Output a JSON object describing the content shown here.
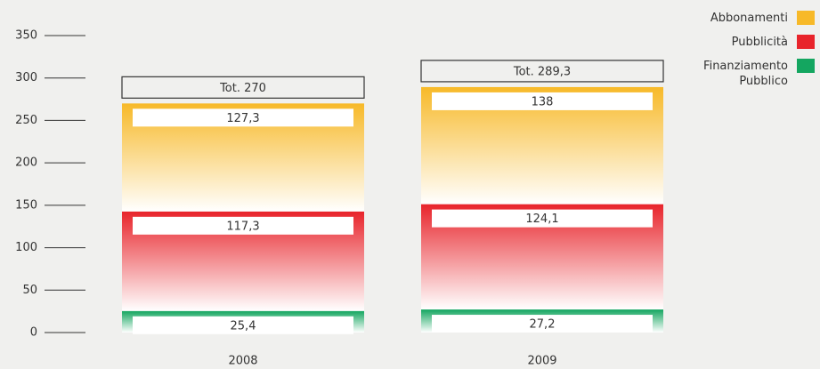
{
  "chart_data": {
    "type": "stacked_bar",
    "categories": [
      "2008",
      "2009"
    ],
    "series": [
      {
        "name": "Finanziamento Pubblico",
        "color": "#14a660",
        "values": [
          25.4,
          27.2
        ],
        "value_labels": [
          "25,4",
          "27,2"
        ]
      },
      {
        "name": "Pubblicità",
        "color": "#e8242b",
        "values": [
          117.3,
          124.1
        ],
        "value_labels": [
          "117,3",
          "124,1"
        ]
      },
      {
        "name": "Abbonamenti",
        "color": "#f7b928",
        "values": [
          127.3,
          138
        ],
        "value_labels": [
          "127,3",
          "138"
        ]
      }
    ],
    "totals": [
      270,
      289.3
    ],
    "total_labels": [
      "Tot. 270",
      "Tot. 289,3"
    ],
    "ylim": [
      0,
      350
    ],
    "yticks": [
      0,
      50,
      100,
      150,
      200,
      250,
      300,
      350
    ],
    "legend": "top-right"
  }
}
